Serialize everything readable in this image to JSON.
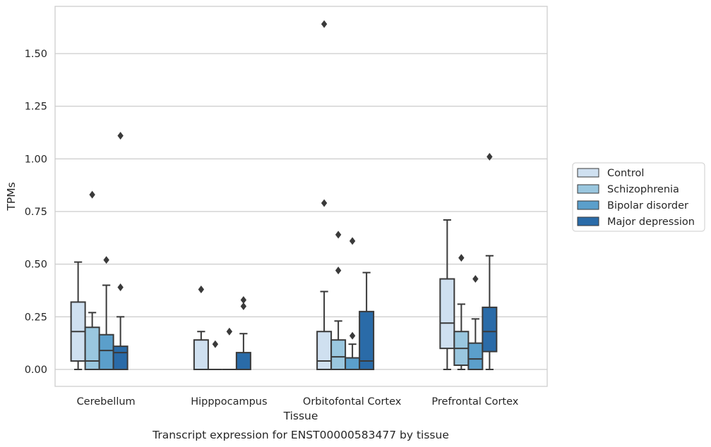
{
  "chart_data": {
    "type": "boxplot",
    "xlabel": "Tissue",
    "ylabel": "TPMs",
    "caption": "Transcript expression for ENST00000583477 by tissue",
    "ylim": [
      -0.08,
      1.72
    ],
    "yticks": [
      "0.00",
      "0.25",
      "0.50",
      "0.75",
      "1.00",
      "1.25",
      "1.50"
    ],
    "grid": "horizontal",
    "legend_position": "right",
    "categories": [
      "Cerebellum",
      "Hipppocampus",
      "Orbitofontal Cortex",
      "Prefrontal Cortex"
    ],
    "series": [
      {
        "name": "Control",
        "color": "#cfe0f0",
        "boxes": [
          {
            "whislo": 0.0,
            "q1": 0.04,
            "med": 0.18,
            "q3": 0.32,
            "whishi": 0.51,
            "fliers": []
          },
          {
            "whislo": 0.0,
            "q1": 0.0,
            "med": 0.0,
            "q3": 0.14,
            "whishi": 0.18,
            "fliers": [
              0.38
            ]
          },
          {
            "whislo": 0.0,
            "q1": 0.0,
            "med": 0.04,
            "q3": 0.18,
            "whishi": 0.37,
            "fliers": [
              0.79,
              1.64
            ]
          },
          {
            "whislo": 0.0,
            "q1": 0.1,
            "med": 0.22,
            "q3": 0.43,
            "whishi": 0.71,
            "fliers": []
          }
        ]
      },
      {
        "name": "Schizophrenia",
        "color": "#9ac7df",
        "boxes": [
          {
            "whislo": 0.0,
            "q1": 0.0,
            "med": 0.04,
            "q3": 0.2,
            "whishi": 0.27,
            "fliers": [
              0.83
            ]
          },
          {
            "whislo": 0.0,
            "q1": 0.0,
            "med": 0.0,
            "q3": 0.0,
            "whishi": 0.0,
            "fliers": [
              0.12
            ]
          },
          {
            "whislo": 0.0,
            "q1": 0.0,
            "med": 0.06,
            "q3": 0.14,
            "whishi": 0.23,
            "fliers": [
              0.47,
              0.64
            ]
          },
          {
            "whislo": 0.0,
            "q1": 0.02,
            "med": 0.1,
            "q3": 0.18,
            "whishi": 0.31,
            "fliers": [
              0.53
            ]
          }
        ]
      },
      {
        "name": "Bipolar disorder",
        "color": "#5b9fcb",
        "boxes": [
          {
            "whislo": 0.0,
            "q1": 0.0,
            "med": 0.09,
            "q3": 0.165,
            "whishi": 0.4,
            "fliers": [
              0.52
            ]
          },
          {
            "whislo": 0.0,
            "q1": 0.0,
            "med": 0.0,
            "q3": 0.0,
            "whishi": 0.0,
            "fliers": [
              0.18
            ]
          },
          {
            "whislo": 0.0,
            "q1": 0.0,
            "med": 0.0,
            "q3": 0.055,
            "whishi": 0.12,
            "fliers": [
              0.16,
              0.61
            ]
          },
          {
            "whislo": 0.0,
            "q1": 0.0,
            "med": 0.05,
            "q3": 0.125,
            "whishi": 0.24,
            "fliers": [
              0.43
            ]
          }
        ]
      },
      {
        "name": "Major depression",
        "color": "#2a6ba8",
        "boxes": [
          {
            "whislo": 0.0,
            "q1": 0.0,
            "med": 0.08,
            "q3": 0.11,
            "whishi": 0.25,
            "fliers": [
              0.39,
              1.11
            ]
          },
          {
            "whislo": 0.0,
            "q1": 0.0,
            "med": 0.0,
            "q3": 0.08,
            "whishi": 0.17,
            "fliers": [
              0.3,
              0.33
            ]
          },
          {
            "whislo": 0.0,
            "q1": 0.0,
            "med": 0.04,
            "q3": 0.275,
            "whishi": 0.46,
            "fliers": []
          },
          {
            "whislo": 0.0,
            "q1": 0.085,
            "med": 0.18,
            "q3": 0.295,
            "whishi": 0.54,
            "fliers": [
              1.01
            ]
          }
        ]
      }
    ]
  }
}
